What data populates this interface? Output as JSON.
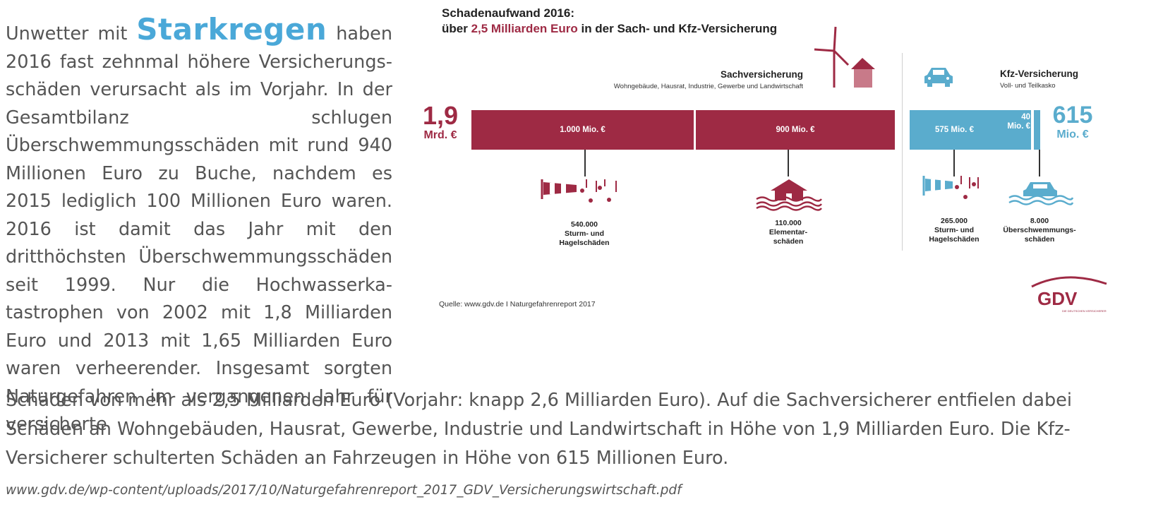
{
  "article": {
    "intro_prefix": "Unwetter mit",
    "keyword": "Starkregen",
    "intro_rest": "haben 2016 fast zehnmal höhere Versicherungs­schäden verursacht als im Vorjahr. In der Gesamtbilanz schlugen Überschwemmungs­schäden mit rund 940 Millionen Euro zu Bu­che, nachdem es 2015 lediglich 100 Milli­onen Euro waren. 2016 ist damit das Jahr mit den dritthöchsten Überschwemmungs­schäden seit 1999. Nur die Hochwasserka­tastrophen von 2002 mit 1,8 Milliarden Euro und 2013 mit 1,65 Milliarden Euro waren verheerender. Insgesamt sorgten Naturge­fahren im vergangenen Jahr für versicherte",
    "continuation": "Schäden von mehr als 2,5 Milliarden Euro (Vorjahr: knapp 2,6 Milliarden Euro). Auf die Sachversicherer entfielen dabei Schä­den an Wohngebäuden, Hausrat, Gewerbe, Industrie und Landwirtschaft in Höhe von 1,9 Milliarden Euro. Die Kfz-Versicherer schulterten Schäden an Fahrzeugen in Höhe von 615 Millionen Euro.",
    "source_url": "www.gdv.de/wp-content/uploads/2017/10/Naturgefahrenreport_2017_GDV_Versicherungswirtschaft.pdf"
  },
  "infographic": {
    "title_line1": "Schadenaufwand 2016:",
    "title_prefix": "über",
    "title_highlight": "2,5 Milliarden Euro",
    "title_suffix": "in der Sach- und Kfz-Versicherung",
    "sach": {
      "heading": "Sachversicherung",
      "subheading": "Wohngebäude, Hausrat, Industrie, Gewerbe und Landwirtschaft",
      "total_value": "1,9",
      "total_unit": "Mrd. €",
      "bars": [
        {
          "label": "1.000 Mio. €",
          "value": 1000
        },
        {
          "label": "900 Mio. €",
          "value": 900
        }
      ],
      "stats": [
        {
          "count": "540.000",
          "label1": "Sturm- und",
          "label2": "Hagelschäden"
        },
        {
          "count": "110.000",
          "label1": "Elementar-",
          "label2": "schäden"
        }
      ]
    },
    "kfz": {
      "heading": "Kfz-Versicherung",
      "subheading": "Voll- und Teilkasko",
      "total_value": "615",
      "total_unit": "Mio. €",
      "bars": [
        {
          "label": "575 Mio. €",
          "value": 575
        },
        {
          "label_line1": "40",
          "label_line2": "Mio. €",
          "value": 40
        }
      ],
      "stats": [
        {
          "count": "265.000",
          "label1": "Sturm- und",
          "label2": "Hagelschäden"
        },
        {
          "count": "8.000",
          "label1": "Überschwemmungs-",
          "label2": "schäden"
        }
      ]
    },
    "source": "Quelle: www.gdv.de I Naturgefahrenreport 2017",
    "logo_text": "GDV",
    "logo_subtext": "DIE DEUTSCHEN VERSICHERER",
    "colors": {
      "sach": "#9e2a44",
      "kfz": "#5aaccd",
      "keyword": "#4aa8d8"
    }
  }
}
